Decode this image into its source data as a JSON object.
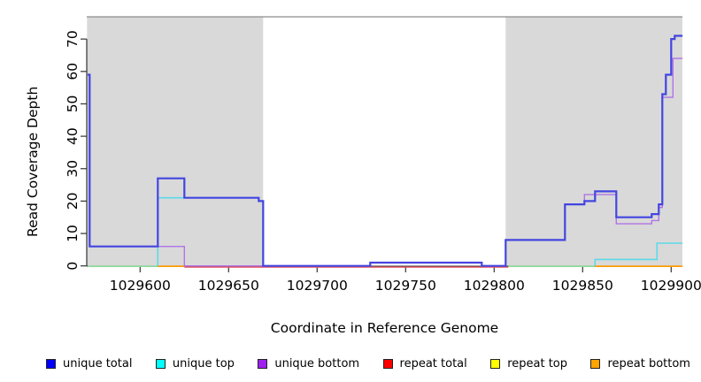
{
  "axes": {
    "x_label": "Coordinate in Reference Genome",
    "y_label": "Read Coverage Depth"
  },
  "chart_data": {
    "type": "line",
    "subtype": "step-coverage",
    "title": "",
    "xlabel": "Coordinate in Reference Genome",
    "ylabel": "Read Coverage Depth",
    "xlim": [
      1029570,
      1029906
    ],
    "ylim": [
      0,
      75
    ],
    "x_ticks": [
      1029600,
      1029650,
      1029700,
      1029750,
      1029800,
      1029850,
      1029900
    ],
    "y_ticks": [
      0,
      10,
      20,
      30,
      40,
      50,
      60,
      70
    ],
    "grid": false,
    "legend_position": "bottom",
    "shaded_region_color": "#D9D9D9",
    "shaded_regions": [
      {
        "from": 1029570,
        "to": 1029669.5
      },
      {
        "from": 1029806.5,
        "to": 1029906.5
      }
    ],
    "series": [
      {
        "name": "repeat total",
        "legend_color": "#FF0000",
        "display_color": "#E8505E",
        "width": 1.4,
        "segments": [
          [
            [
              1029625,
              0
            ],
            [
              1029808,
              0
            ]
          ]
        ]
      },
      {
        "name": "repeat top",
        "legend_color": "#FFFF00",
        "display_color": "#8FD79B",
        "width": 1.7,
        "segments": [
          [
            [
              1029570.4,
              0
            ],
            [
              1029610,
              0
            ]
          ],
          [
            [
              1029808,
              0
            ],
            [
              1029857,
              0
            ]
          ]
        ]
      },
      {
        "name": "repeat bottom",
        "legend_color": "#FFA500",
        "display_color": "#FF9A00",
        "width": 1.8,
        "segments": [
          [
            [
              1029610,
              0
            ],
            [
              1029625,
              0
            ]
          ],
          [
            [
              1029857,
              0
            ],
            [
              1029906.4,
              0
            ]
          ]
        ]
      },
      {
        "name": "unique top",
        "legend_color": "#00FFFF",
        "display_color": "#5BD9E8",
        "width": 1.6,
        "segments": [
          [
            [
              1029610,
              0
            ],
            [
              1029610,
              21
            ],
            [
              1029667,
              21
            ],
            [
              1029667,
              20
            ],
            [
              1029669.5,
              20
            ],
            [
              1029669.5,
              0
            ]
          ],
          [
            [
              1029857,
              0
            ],
            [
              1029857,
              2
            ],
            [
              1029892,
              2
            ],
            [
              1029892,
              7
            ],
            [
              1029906.4,
              7
            ]
          ]
        ]
      },
      {
        "name": "unique bottom",
        "legend_color": "#A020F0",
        "display_color": "#B173E6",
        "width": 1.4,
        "segments": [
          [
            [
              1029570.4,
              59
            ],
            [
              1029571.5,
              59
            ],
            [
              1029571.5,
              6
            ],
            [
              1029610,
              6
            ],
            [
              1029610,
              6
            ],
            [
              1029625,
              6
            ],
            [
              1029625,
              0
            ],
            [
              1029730,
              0
            ]
          ],
          [
            [
              1029793,
              0
            ],
            [
              1029806.5,
              0
            ],
            [
              1029806.5,
              8
            ],
            [
              1029840,
              8
            ],
            [
              1029840,
              19
            ],
            [
              1029851,
              19
            ],
            [
              1029851,
              22
            ],
            [
              1029869,
              22
            ],
            [
              1029869,
              13
            ],
            [
              1029889,
              13
            ],
            [
              1029889,
              14
            ],
            [
              1029893,
              14
            ],
            [
              1029893,
              18
            ],
            [
              1029895,
              18
            ],
            [
              1029895,
              52
            ],
            [
              1029901,
              52
            ],
            [
              1029901,
              64
            ],
            [
              1029906.4,
              64
            ]
          ]
        ]
      },
      {
        "name": "unique total",
        "legend_color": "#0000FF",
        "display_color": "#4345E0",
        "width": 2.2,
        "segments": [
          [
            [
              1029570.4,
              59
            ],
            [
              1029571.5,
              59
            ],
            [
              1029571.5,
              6
            ],
            [
              1029610,
              6
            ],
            [
              1029610,
              27
            ],
            [
              1029625,
              27
            ],
            [
              1029625,
              21
            ],
            [
              1029667,
              21
            ],
            [
              1029667,
              20
            ],
            [
              1029669.5,
              20
            ],
            [
              1029669.5,
              0
            ],
            [
              1029730,
              0
            ],
            [
              1029730,
              1
            ],
            [
              1029793,
              1
            ],
            [
              1029793,
              0
            ],
            [
              1029806.5,
              0
            ],
            [
              1029806.5,
              8
            ],
            [
              1029840,
              8
            ],
            [
              1029840,
              19
            ],
            [
              1029851,
              19
            ],
            [
              1029851,
              20
            ],
            [
              1029857,
              20
            ],
            [
              1029857,
              23
            ],
            [
              1029869,
              23
            ],
            [
              1029869,
              15
            ],
            [
              1029889,
              15
            ],
            [
              1029889,
              16
            ],
            [
              1029893,
              16
            ],
            [
              1029893,
              19
            ],
            [
              1029895,
              19
            ],
            [
              1029895,
              53
            ],
            [
              1029897,
              53
            ],
            [
              1029897,
              59
            ],
            [
              1029900,
              59
            ],
            [
              1029900,
              70
            ],
            [
              1029902,
              70
            ],
            [
              1029902,
              71
            ],
            [
              1029906.4,
              71
            ]
          ]
        ]
      }
    ],
    "legend": [
      {
        "label": "unique total",
        "color": "#0000FF"
      },
      {
        "label": "unique top",
        "color": "#00FFFF"
      },
      {
        "label": "unique bottom",
        "color": "#A020F0"
      },
      {
        "label": "repeat total",
        "color": "#FF0000"
      },
      {
        "label": "repeat top",
        "color": "#FFFF00"
      },
      {
        "label": "repeat bottom",
        "color": "#FFA500"
      }
    ]
  }
}
